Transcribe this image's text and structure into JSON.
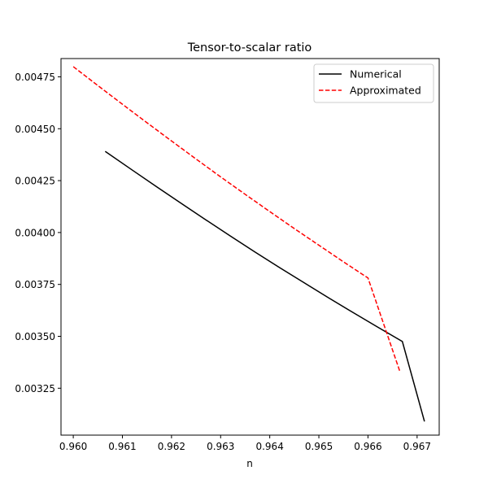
{
  "chart_data": {
    "type": "line",
    "title": "Tensor-to-scalar ratio",
    "xlabel": "n",
    "ylabel": "",
    "xlim": [
      0.95975,
      0.96745
    ],
    "ylim": [
      0.003024,
      0.004838
    ],
    "xticks": [
      0.96,
      0.961,
      0.962,
      0.963,
      0.964,
      0.965,
      0.966,
      0.967
    ],
    "xtick_labels": [
      "0.960",
      "0.961",
      "0.962",
      "0.963",
      "0.964",
      "0.965",
      "0.966",
      "0.967"
    ],
    "yticks": [
      0.00325,
      0.0035,
      0.00375,
      0.004,
      0.00425,
      0.0045,
      0.00475
    ],
    "ytick_labels": [
      "0.00325",
      "0.00350",
      "0.00375",
      "0.00400",
      "0.00425",
      "0.00450",
      "0.00475"
    ],
    "grid": false,
    "legend_position": "top-right",
    "series": [
      {
        "name": "Numerical",
        "color": "#000000",
        "style": "solid",
        "x": [
          0.96065,
          0.9612,
          0.9617,
          0.9622,
          0.9627,
          0.9632,
          0.9637,
          0.9642,
          0.9647,
          0.9652,
          0.9657,
          0.9662,
          0.9667,
          0.96715
        ],
        "y": [
          0.004391,
          0.004301,
          0.00422,
          0.00414,
          0.004061,
          0.003983,
          0.003906,
          0.003831,
          0.003758,
          0.003685,
          0.003614,
          0.003544,
          0.003475,
          0.00309
        ]
      },
      {
        "name": "Approximated",
        "color": "#ff0000",
        "style": "dashed",
        "x": [
          0.96,
          0.9605,
          0.961,
          0.9615,
          0.962,
          0.9625,
          0.963,
          0.9635,
          0.964,
          0.9645,
          0.965,
          0.9655,
          0.966,
          0.96665
        ],
        "y": [
          0.004799,
          0.004708,
          0.004618,
          0.004529,
          0.004441,
          0.004354,
          0.004268,
          0.004184,
          0.004101,
          0.004019,
          0.003939,
          0.003859,
          0.003781,
          0.00333
        ]
      }
    ]
  }
}
